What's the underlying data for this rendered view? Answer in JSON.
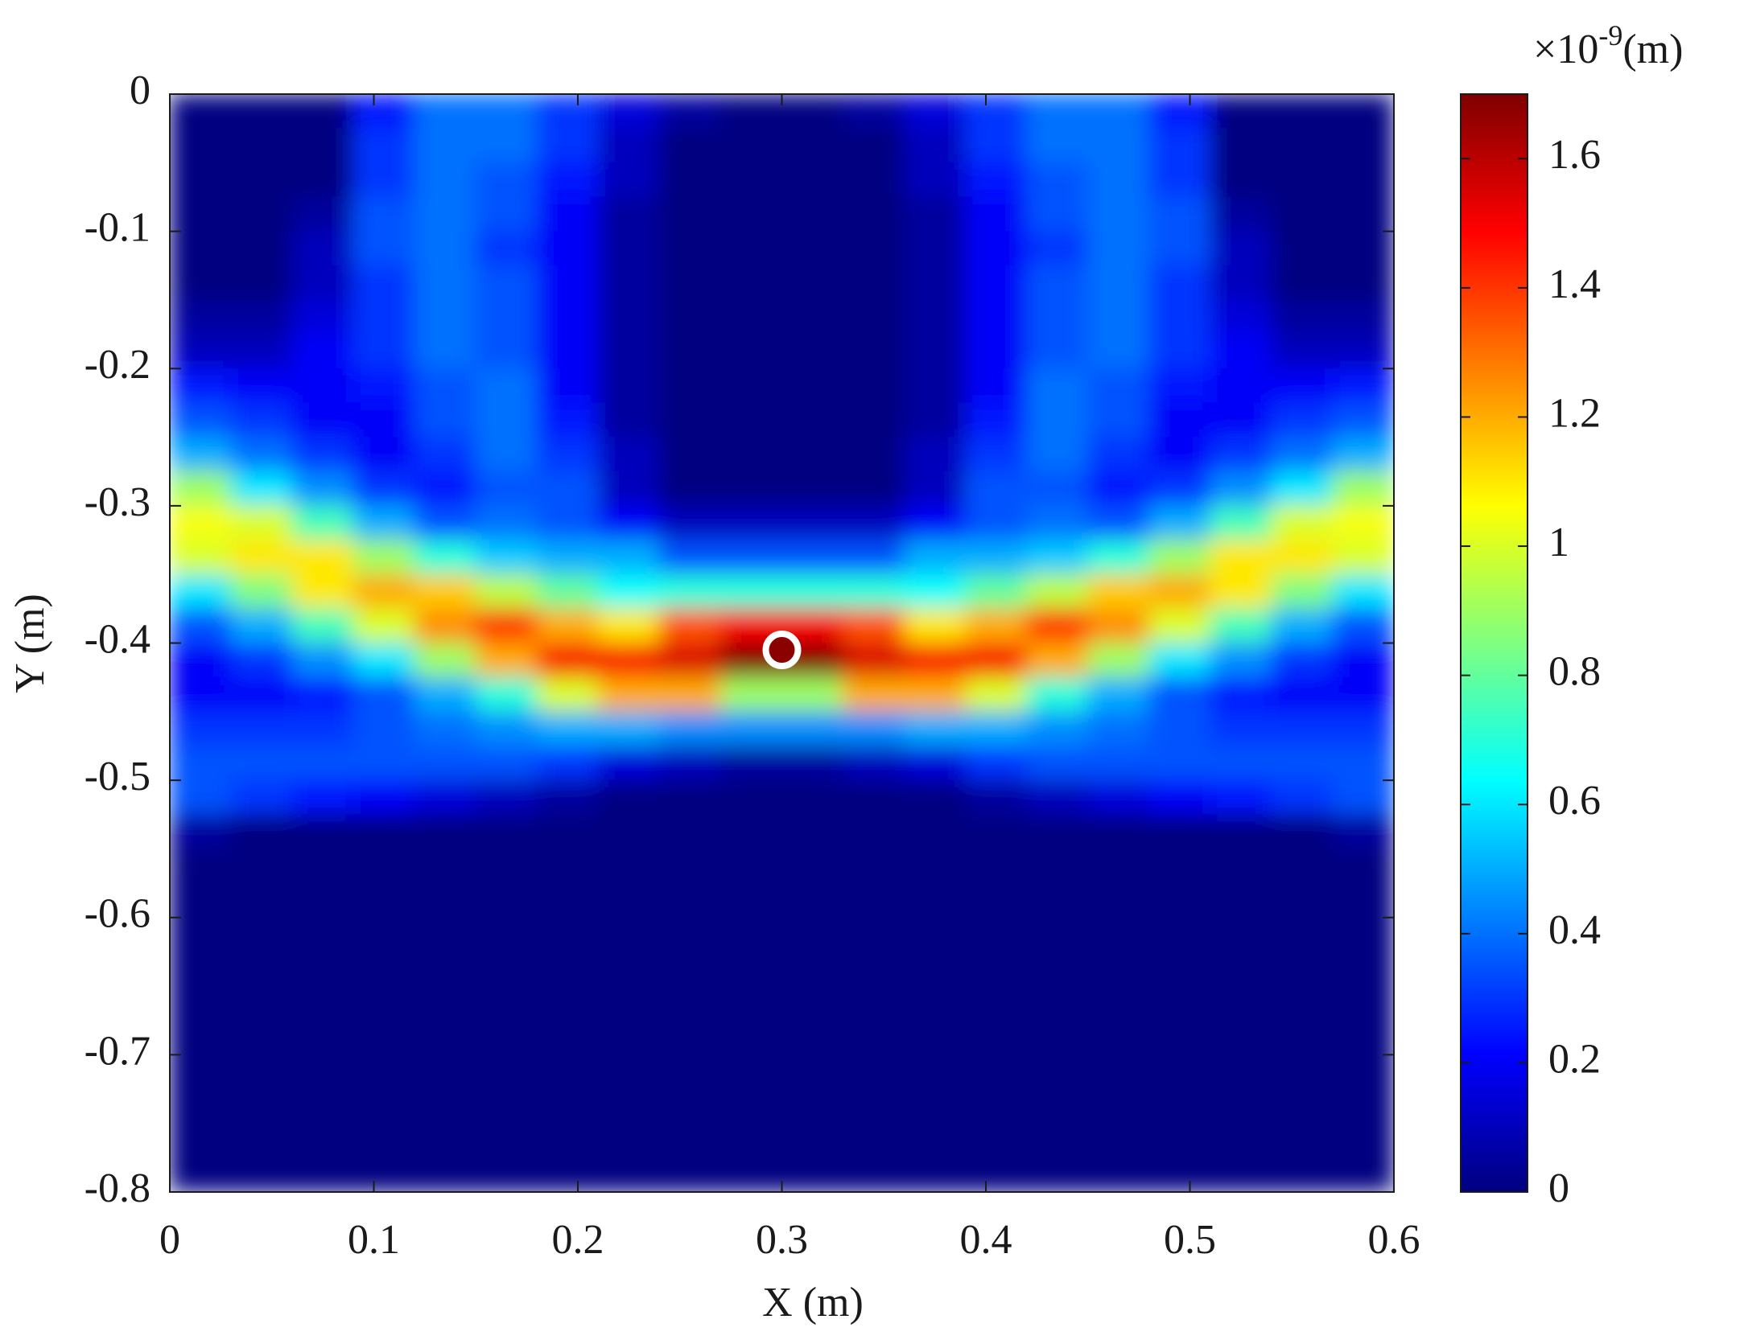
{
  "chart_data": {
    "type": "heatmap",
    "xlabel": "X (m)",
    "ylabel": "Y (m)",
    "xlim": [
      0,
      0.6
    ],
    "ylim": [
      -0.8,
      0
    ],
    "xticks": [
      0,
      0.1,
      0.2,
      0.3,
      0.4,
      0.5,
      0.6
    ],
    "yticks": [
      0,
      -0.1,
      -0.2,
      -0.3,
      -0.4,
      -0.5,
      -0.6,
      -0.7,
      -0.8
    ],
    "colormap": "jet",
    "clim": [
      0,
      1.7
    ],
    "cticks": [
      0,
      0.2,
      0.4,
      0.6,
      0.8,
      1,
      1.2,
      1.4,
      1.6
    ],
    "colorbar_multiplier": "×10",
    "colorbar_exponent": "-9",
    "colorbar_unit": "(m)",
    "x": [
      0.015,
      0.045,
      0.075,
      0.105,
      0.135,
      0.165,
      0.195,
      0.225,
      0.255,
      0.285,
      0.315,
      0.345,
      0.375,
      0.405,
      0.435,
      0.465,
      0.495,
      0.525,
      0.555,
      0.585
    ],
    "y": [
      -0.0125,
      -0.0375,
      -0.0625,
      -0.0875,
      -0.1125,
      -0.1375,
      -0.1625,
      -0.1875,
      -0.2125,
      -0.2375,
      -0.2625,
      -0.2875,
      -0.3125,
      -0.3375,
      -0.3625,
      -0.3875,
      -0.4125,
      -0.4375,
      -0.4625,
      -0.4875,
      -0.5125,
      -0.5375,
      -0.5625,
      -0.5875,
      -0.6125,
      -0.6375,
      -0.6625,
      -0.6875,
      -0.7125,
      -0.7375,
      -0.7625,
      -0.7875
    ],
    "z": [
      [
        0,
        0,
        0,
        0.25,
        0.4,
        0.4,
        0.3,
        0.15,
        0.05,
        0,
        0,
        0.05,
        0.15,
        0.3,
        0.4,
        0.4,
        0.25,
        0,
        0,
        0
      ],
      [
        0,
        0,
        0,
        0.3,
        0.4,
        0.4,
        0.3,
        0.1,
        0,
        0,
        0,
        0,
        0.1,
        0.3,
        0.4,
        0.4,
        0.3,
        0,
        0,
        0
      ],
      [
        0,
        0,
        0,
        0.3,
        0.4,
        0.35,
        0.25,
        0.1,
        0,
        0,
        0,
        0,
        0.1,
        0.25,
        0.35,
        0.4,
        0.3,
        0,
        0,
        0
      ],
      [
        0,
        0,
        0.05,
        0.35,
        0.4,
        0.35,
        0.2,
        0.05,
        0,
        0,
        0,
        0,
        0.05,
        0.2,
        0.35,
        0.4,
        0.35,
        0.05,
        0,
        0
      ],
      [
        0,
        0,
        0.1,
        0.35,
        0.4,
        0.3,
        0.2,
        0.05,
        0,
        0,
        0,
        0,
        0.05,
        0.2,
        0.3,
        0.4,
        0.35,
        0.1,
        0,
        0
      ],
      [
        0,
        0,
        0.1,
        0.3,
        0.4,
        0.35,
        0.2,
        0.05,
        0,
        0,
        0,
        0,
        0.05,
        0.2,
        0.35,
        0.4,
        0.3,
        0.1,
        0,
        0
      ],
      [
        0.05,
        0.05,
        0.15,
        0.3,
        0.4,
        0.35,
        0.2,
        0.05,
        0,
        0,
        0,
        0,
        0.05,
        0.2,
        0.35,
        0.4,
        0.3,
        0.15,
        0.05,
        0.05
      ],
      [
        0.1,
        0.1,
        0.2,
        0.3,
        0.4,
        0.35,
        0.2,
        0.05,
        0,
        0,
        0,
        0,
        0.05,
        0.2,
        0.35,
        0.4,
        0.3,
        0.2,
        0.1,
        0.1
      ],
      [
        0.25,
        0.2,
        0.2,
        0.25,
        0.35,
        0.4,
        0.2,
        0.05,
        0,
        0,
        0,
        0,
        0.05,
        0.2,
        0.4,
        0.35,
        0.25,
        0.2,
        0.2,
        0.25
      ],
      [
        0.35,
        0.3,
        0.2,
        0.2,
        0.35,
        0.4,
        0.25,
        0.05,
        0,
        0,
        0,
        0,
        0.05,
        0.25,
        0.4,
        0.35,
        0.2,
        0.2,
        0.3,
        0.35
      ],
      [
        0.5,
        0.4,
        0.3,
        0.2,
        0.3,
        0.4,
        0.3,
        0.1,
        0,
        0,
        0,
        0,
        0.1,
        0.3,
        0.4,
        0.3,
        0.2,
        0.3,
        0.4,
        0.5
      ],
      [
        0.9,
        0.6,
        0.45,
        0.3,
        0.25,
        0.35,
        0.35,
        0.1,
        0,
        0,
        0,
        0,
        0.1,
        0.35,
        0.35,
        0.25,
        0.3,
        0.45,
        0.6,
        0.9
      ],
      [
        1.05,
        1.0,
        0.75,
        0.5,
        0.35,
        0.4,
        0.35,
        0.2,
        0.1,
        0.1,
        0.1,
        0.1,
        0.2,
        0.35,
        0.4,
        0.35,
        0.5,
        0.75,
        1.0,
        1.05
      ],
      [
        1.0,
        1.1,
        1.1,
        0.9,
        0.7,
        0.55,
        0.5,
        0.5,
        0.35,
        0.35,
        0.35,
        0.35,
        0.5,
        0.5,
        0.55,
        0.7,
        0.9,
        1.1,
        1.1,
        1.0
      ],
      [
        0.6,
        0.85,
        1.1,
        1.2,
        1.15,
        0.95,
        0.8,
        0.65,
        0.7,
        0.7,
        0.7,
        0.7,
        0.65,
        0.8,
        0.95,
        1.15,
        1.2,
        1.1,
        0.85,
        0.6
      ],
      [
        0.35,
        0.5,
        0.75,
        1.0,
        1.25,
        1.4,
        1.2,
        1.1,
        1.35,
        1.5,
        1.5,
        1.35,
        1.1,
        1.2,
        1.4,
        1.25,
        1.0,
        0.75,
        0.5,
        0.35
      ],
      [
        0.2,
        0.3,
        0.45,
        0.6,
        0.9,
        1.2,
        1.5,
        1.5,
        1.55,
        1.7,
        1.7,
        1.55,
        1.5,
        1.5,
        1.2,
        0.9,
        0.6,
        0.45,
        0.3,
        0.2
      ],
      [
        0.2,
        0.2,
        0.25,
        0.35,
        0.5,
        0.7,
        1.0,
        1.2,
        1.2,
        0.9,
        0.9,
        1.2,
        1.2,
        1.0,
        0.7,
        0.5,
        0.35,
        0.25,
        0.2,
        0.2
      ],
      [
        0.3,
        0.3,
        0.3,
        0.35,
        0.4,
        0.45,
        0.5,
        0.5,
        0.45,
        0.45,
        0.45,
        0.45,
        0.5,
        0.5,
        0.45,
        0.4,
        0.35,
        0.3,
        0.3,
        0.3
      ],
      [
        0.35,
        0.35,
        0.35,
        0.35,
        0.35,
        0.35,
        0.3,
        0.15,
        0.1,
        0.05,
        0.05,
        0.1,
        0.15,
        0.3,
        0.35,
        0.35,
        0.35,
        0.35,
        0.35,
        0.35
      ],
      [
        0.35,
        0.3,
        0.25,
        0.2,
        0.15,
        0.1,
        0.05,
        0,
        0,
        0,
        0,
        0,
        0,
        0.05,
        0.1,
        0.15,
        0.2,
        0.25,
        0.3,
        0.35
      ],
      [
        0.05,
        0,
        0,
        0,
        0,
        0,
        0,
        0,
        0,
        0,
        0,
        0,
        0,
        0,
        0,
        0,
        0,
        0,
        0,
        0.05
      ],
      [
        0,
        0,
        0,
        0,
        0,
        0,
        0,
        0,
        0,
        0,
        0,
        0,
        0,
        0,
        0,
        0,
        0,
        0,
        0,
        0
      ],
      [
        0,
        0,
        0,
        0,
        0,
        0,
        0,
        0,
        0,
        0,
        0,
        0,
        0,
        0,
        0,
        0,
        0,
        0,
        0,
        0
      ],
      [
        0,
        0,
        0,
        0,
        0,
        0,
        0,
        0,
        0,
        0,
        0,
        0,
        0,
        0,
        0,
        0,
        0,
        0,
        0,
        0
      ],
      [
        0,
        0,
        0,
        0,
        0,
        0,
        0,
        0,
        0,
        0,
        0,
        0,
        0,
        0,
        0,
        0,
        0,
        0,
        0,
        0
      ],
      [
        0,
        0,
        0,
        0,
        0,
        0,
        0,
        0,
        0,
        0,
        0,
        0,
        0,
        0,
        0,
        0,
        0,
        0,
        0,
        0
      ],
      [
        0,
        0,
        0,
        0,
        0,
        0,
        0,
        0,
        0,
        0,
        0,
        0,
        0,
        0,
        0,
        0,
        0,
        0,
        0,
        0
      ],
      [
        0,
        0,
        0,
        0,
        0,
        0,
        0,
        0,
        0,
        0,
        0,
        0,
        0,
        0,
        0,
        0,
        0,
        0,
        0,
        0
      ],
      [
        0,
        0,
        0,
        0,
        0,
        0,
        0,
        0,
        0,
        0,
        0,
        0,
        0,
        0,
        0,
        0,
        0,
        0,
        0,
        0
      ],
      [
        0,
        0,
        0,
        0,
        0,
        0,
        0,
        0,
        0,
        0,
        0,
        0,
        0,
        0,
        0,
        0,
        0,
        0,
        0,
        0
      ],
      [
        0,
        0,
        0,
        0,
        0,
        0,
        0,
        0,
        0,
        0,
        0,
        0,
        0,
        0,
        0,
        0,
        0,
        0,
        0,
        0
      ]
    ],
    "marker": {
      "x": 0.3,
      "y": -0.405,
      "color": "#8b0000",
      "edgecolor": "#ffffff"
    }
  }
}
